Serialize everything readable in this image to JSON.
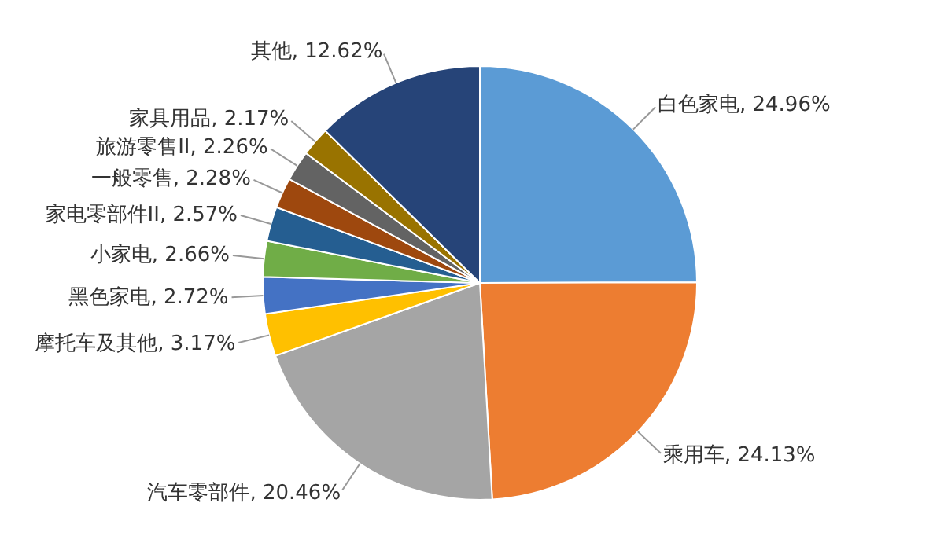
{
  "chart_data": {
    "type": "pie",
    "categories": [
      "白色家电",
      "乘用车",
      "汽车零部件",
      "摩托车及其他",
      "黑色家电",
      "小家电",
      "家电零部件II",
      "一般零售",
      "旅游零售II",
      "家具用品",
      "其他"
    ],
    "values": [
      24.96,
      24.13,
      20.46,
      3.17,
      2.72,
      2.66,
      2.57,
      2.28,
      2.26,
      2.17,
      12.62
    ],
    "value_labels": [
      "24.96%",
      "24.13%",
      "20.46%",
      "3.17%",
      "2.72%",
      "2.66%",
      "2.57%",
      "2.28%",
      "2.26%",
      "2.17%",
      "12.62%"
    ],
    "colors": [
      "#5b9bd5",
      "#ed7d31",
      "#a5a5a5",
      "#ffc000",
      "#4472c4",
      "#70ad47",
      "#255e91",
      "#9e480e",
      "#636363",
      "#997300",
      "#264478"
    ],
    "legend": false
  }
}
